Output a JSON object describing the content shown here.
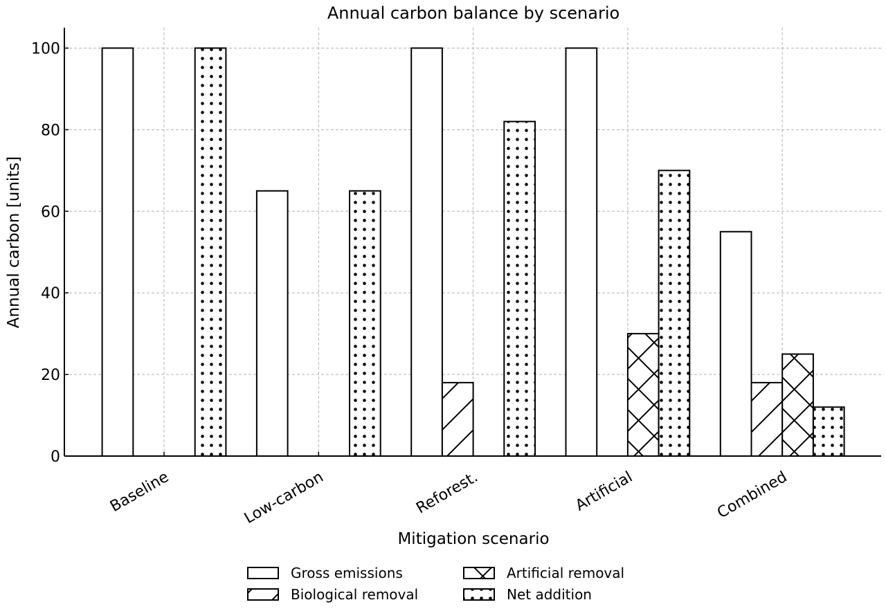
{
  "chart_data": {
    "type": "bar",
    "title": "Annual carbon balance by scenario",
    "xlabel": "Mitigation scenario",
    "ylabel": "Annual carbon [units]",
    "categories": [
      "Baseline",
      "Low-carbon",
      "Reforest.",
      "Artificial",
      "Combined"
    ],
    "series": [
      {
        "name": "Gross emissions",
        "pattern": "none",
        "values": [
          100,
          65,
          100,
          100,
          55
        ]
      },
      {
        "name": "Biological removal",
        "pattern": "diagonal",
        "values": [
          0,
          0,
          18,
          0,
          18
        ]
      },
      {
        "name": "Artificial removal",
        "pattern": "crosshatch",
        "values": [
          0,
          0,
          0,
          30,
          25
        ]
      },
      {
        "name": "Net addition",
        "pattern": "dots",
        "values": [
          100,
          65,
          82,
          70,
          12
        ]
      }
    ],
    "ylim": [
      0,
      105
    ],
    "yticks": [
      0,
      20,
      40,
      60,
      80,
      100
    ],
    "grid": true,
    "legend_position": "bottom-center",
    "colors": {
      "bar_fill": "#ffffff",
      "bar_edge": "#000000",
      "grid": "#b0b0b0"
    }
  }
}
